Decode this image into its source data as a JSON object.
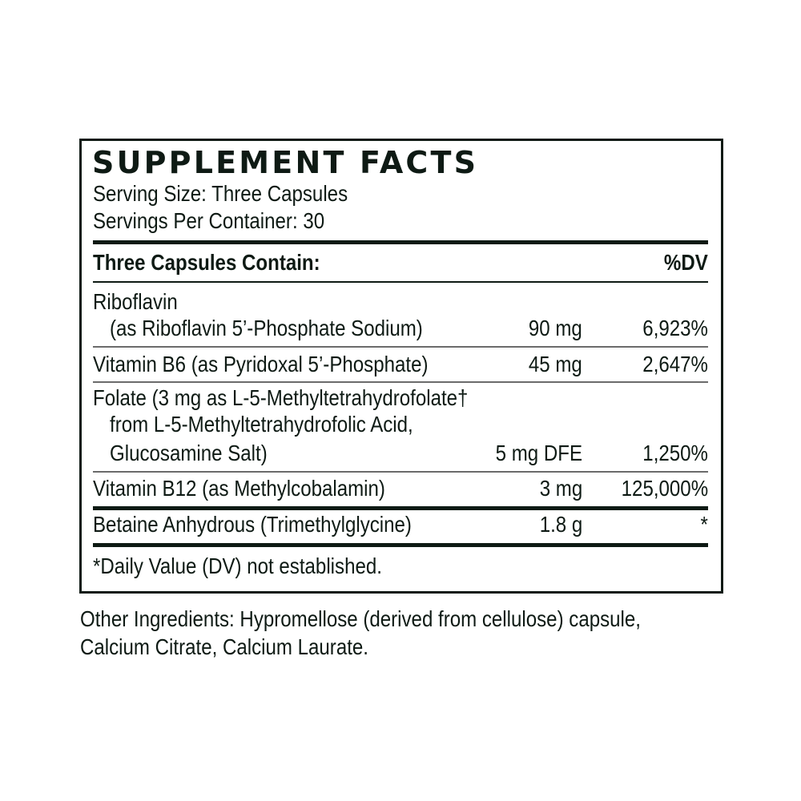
{
  "title": "SUPPLEMENT FACTS",
  "serving_size": "Serving Size: Three Capsules",
  "servings_per_container": "Servings Per Container: 30",
  "header": {
    "contain": "Three Capsules Contain:",
    "dv": "%DV"
  },
  "rows": [
    {
      "lines": [
        "Riboflavin",
        "(as Riboflavin 5’-Phosphate Sodium)"
      ],
      "amount": "90 mg",
      "dv": "6,923%"
    },
    {
      "lines": [
        "Vitamin B6 (as Pyridoxal 5’-Phosphate)"
      ],
      "amount": "45 mg",
      "dv": "2,647%"
    },
    {
      "lines": [
        "Folate (3 mg as L-5-Methyltetrahydrofolate†",
        "from L-5-Methyltetrahydrofolic Acid,",
        "Glucosamine Salt)"
      ],
      "amount": "5 mg DFE",
      "dv": "1,250%"
    },
    {
      "lines": [
        "Vitamin B12 (as Methylcobalamin)"
      ],
      "amount": "3 mg",
      "dv": "125,000%"
    },
    {
      "lines": [
        "Betaine Anhydrous (Trimethylglycine)"
      ],
      "amount": "1.8 g",
      "dv": "*"
    }
  ],
  "footnote": "*Daily Value (DV) not established.",
  "other_ingredients": [
    "Other Ingredients: Hypromellose (derived from cellulose) capsule,",
    "Calcium Citrate, Calcium Laurate."
  ]
}
